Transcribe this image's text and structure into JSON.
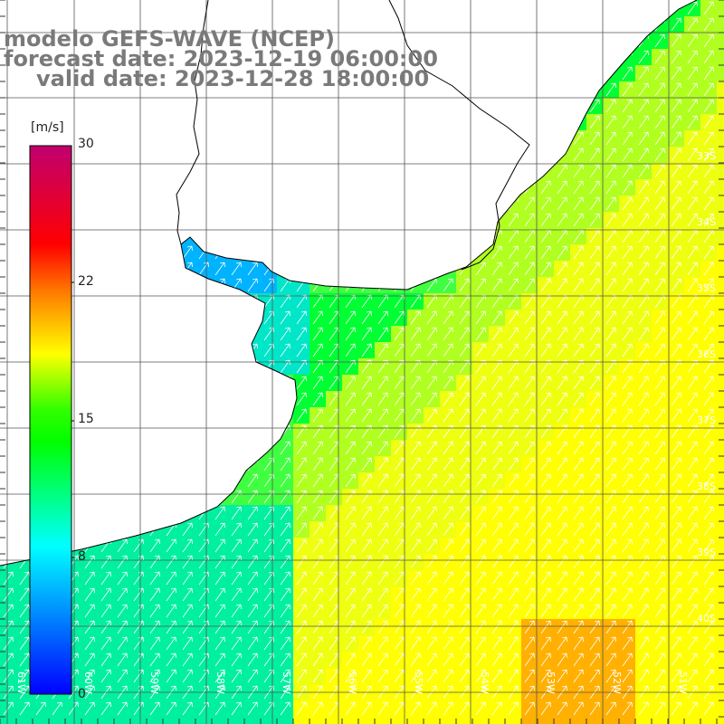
{
  "title": {
    "line1": "modelo GEFS-WAVE (NCEP)",
    "line2": "forecast date: 2023-12-19 06:00:00",
    "line3": "valid date: 2023-12-28 18:00:00"
  },
  "colorbar": {
    "unit": "[m/s]",
    "ticks": [
      "30",
      "22",
      "15",
      "8",
      "0"
    ],
    "colors": [
      "#0000ff",
      "#00ffff",
      "#00ff00",
      "#ffff00",
      "#ff7f00",
      "#ff0000",
      "#c0006f"
    ]
  },
  "lat_labels": [
    "33S",
    "34S",
    "35S",
    "36S",
    "37S",
    "38S",
    "39S",
    "40S"
  ],
  "lon_labels": [
    "61W",
    "60W",
    "59W",
    "58W",
    "57W",
    "56W",
    "55W",
    "54W",
    "53W",
    "52W",
    "51W"
  ],
  "field_colors": {
    "low": "#00b3ff",
    "cyan": "#00e6c8",
    "teal": "#00f0a0",
    "green_light": "#40ff40",
    "green": "#00ff33",
    "yellowgreen": "#b0ff20",
    "yellow": "#eeff10",
    "yellow_strong": "#ffff00",
    "orange": "#ffb000",
    "arrow": "#ffffff",
    "coast": "#000000",
    "grid": "#555555"
  }
}
